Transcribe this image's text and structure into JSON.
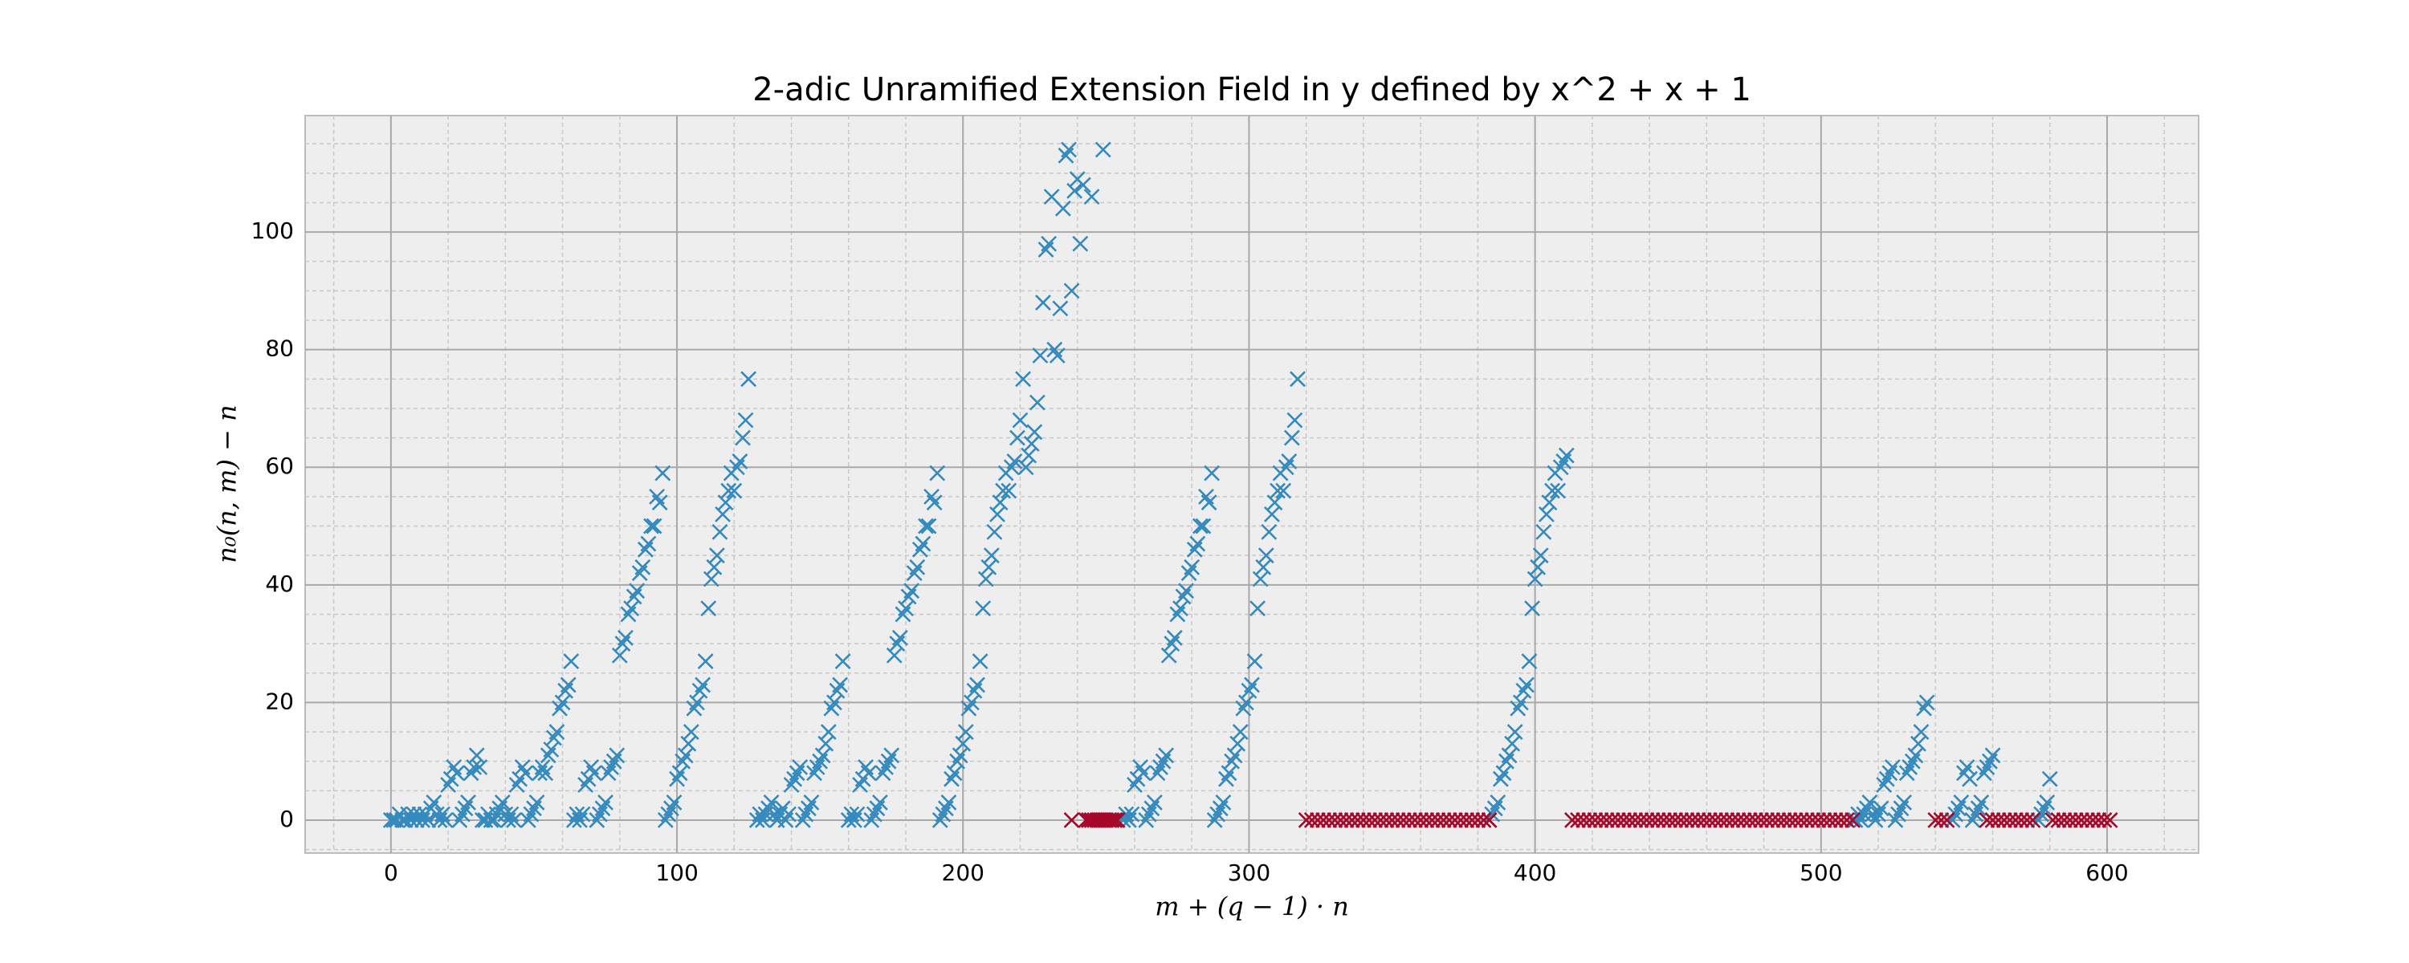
{
  "chart_data": {
    "type": "scatter",
    "title": "2-adic Unramified Extension Field in y defined by x^2 + x + 1",
    "xlabel": "m + (q − 1) · n",
    "ylabel": "n₀(n, m) − n",
    "xlim": [
      -30,
      632
    ],
    "ylim": [
      -5.6,
      119.8
    ],
    "xticks": [
      0,
      100,
      200,
      300,
      400,
      500,
      600
    ],
    "yticks": [
      0,
      20,
      40,
      60,
      80,
      100
    ],
    "xminorticks": [
      -20,
      20,
      40,
      60,
      80,
      120,
      140,
      160,
      180,
      220,
      240,
      260,
      280,
      320,
      340,
      360,
      380,
      420,
      440,
      460,
      480,
      520,
      540,
      560,
      580,
      620
    ],
    "yminorticks": [
      -5,
      5,
      10,
      15,
      25,
      30,
      35,
      45,
      50,
      55,
      65,
      70,
      75,
      85,
      90,
      95,
      105,
      110,
      115
    ],
    "grid": true,
    "background": "#eeeeee",
    "series": [
      {
        "color": "#348ABD",
        "x": [
          0,
          1,
          2,
          3,
          4,
          5,
          6,
          7,
          8,
          9,
          10,
          11,
          12,
          13,
          14,
          15,
          16,
          17,
          18,
          19,
          20,
          21,
          22,
          23,
          24,
          25,
          26,
          27,
          28,
          29,
          30,
          31,
          32,
          33,
          34,
          35,
          36,
          37,
          38,
          39,
          40,
          41,
          42,
          43,
          44,
          45,
          46,
          47,
          48,
          49,
          50,
          51,
          52,
          53,
          54,
          55,
          56,
          57,
          58,
          59,
          60,
          61,
          62,
          63,
          64,
          65,
          66,
          67,
          68,
          69,
          70,
          71,
          72,
          73,
          74,
          75,
          76,
          77,
          78,
          79,
          80,
          81,
          82,
          83,
          84,
          85,
          86,
          87,
          88,
          89,
          90,
          91,
          92,
          93,
          94,
          95,
          96,
          97,
          98,
          99,
          100,
          101,
          102,
          103,
          104,
          105,
          106,
          107,
          108,
          109,
          110,
          111,
          112,
          113,
          114,
          115,
          116,
          117,
          118,
          119,
          120,
          121,
          122,
          123,
          124,
          125,
          128,
          129,
          130,
          131,
          132,
          133,
          134,
          135,
          136,
          137,
          138,
          139,
          140,
          141,
          142,
          143,
          144,
          145,
          146,
          147,
          148,
          149,
          150,
          151,
          152,
          153,
          154,
          155,
          156,
          157,
          158,
          160,
          161,
          162,
          163,
          164,
          165,
          166,
          167,
          168,
          169,
          170,
          171,
          172,
          173,
          174,
          175,
          176,
          177,
          178,
          179,
          180,
          181,
          182,
          183,
          184,
          185,
          186,
          187,
          188,
          189,
          190,
          191,
          192,
          193,
          194,
          195,
          196,
          197,
          198,
          199,
          200,
          201,
          202,
          203,
          204,
          205,
          206,
          207,
          208,
          209,
          210,
          211,
          212,
          213,
          214,
          215,
          216,
          217,
          218,
          219,
          220,
          221,
          222,
          223,
          224,
          225,
          226,
          227,
          228,
          229,
          230,
          231,
          232,
          233,
          234,
          235,
          236,
          237,
          238,
          239,
          240,
          241,
          242,
          245,
          249,
          256,
          257,
          258,
          259,
          260,
          261,
          262,
          263,
          264,
          265,
          266,
          267,
          268,
          269,
          270,
          271,
          272,
          273,
          274,
          275,
          276,
          277,
          278,
          279,
          280,
          281,
          282,
          283,
          284,
          285,
          286,
          287,
          288,
          289,
          290,
          291,
          292,
          293,
          294,
          295,
          296,
          297,
          298,
          299,
          300,
          301,
          302,
          303,
          304,
          305,
          306,
          307,
          308,
          309,
          310,
          311,
          312,
          313,
          314,
          315,
          316,
          317,
          384,
          385,
          386,
          387,
          388,
          389,
          390,
          391,
          392,
          393,
          394,
          395,
          396,
          397,
          398,
          399,
          400,
          401,
          402,
          403,
          404,
          405,
          406,
          407,
          408,
          409,
          410,
          411,
          512,
          513,
          514,
          515,
          516,
          517,
          518,
          519,
          520,
          521,
          522,
          523,
          524,
          525,
          526,
          527,
          528,
          529,
          530,
          531,
          532,
          533,
          534,
          535,
          536,
          537,
          546,
          547,
          548,
          549,
          550,
          551,
          552,
          553,
          554,
          555,
          556,
          557,
          558,
          559,
          560,
          576,
          577,
          578,
          579,
          580
        ],
        "values": [
          0,
          0,
          0,
          1,
          0,
          0,
          1,
          0,
          1,
          0,
          1,
          0,
          1,
          0,
          2,
          3,
          1,
          0,
          1,
          0,
          6,
          7,
          9,
          8,
          0,
          1,
          2,
          3,
          8,
          9,
          11,
          9,
          0,
          0,
          1,
          0,
          0,
          1,
          2,
          3,
          1,
          0,
          1,
          0,
          6,
          7,
          9,
          8,
          0,
          1,
          2,
          3,
          8,
          9,
          8,
          11,
          12,
          14,
          15,
          19,
          20,
          22,
          23,
          27,
          0,
          1,
          0,
          1,
          6,
          7,
          9,
          8,
          0,
          1,
          2,
          3,
          8,
          9,
          10,
          11,
          28,
          30,
          31,
          35,
          36,
          38,
          39,
          42,
          43,
          46,
          47,
          50,
          50,
          55,
          54,
          59,
          0,
          1,
          2,
          3,
          7,
          8,
          10,
          11,
          13,
          15,
          19,
          20,
          22,
          23,
          27,
          36,
          41,
          43,
          45,
          49,
          52,
          54,
          56,
          59,
          56,
          60,
          61,
          65,
          68,
          75,
          0,
          1,
          0,
          1,
          2,
          3,
          1,
          0,
          1,
          2,
          0,
          1,
          6,
          7,
          8,
          9,
          0,
          1,
          2,
          3,
          8,
          9,
          10,
          11,
          13,
          15,
          19,
          20,
          22,
          23,
          27,
          0,
          1,
          0,
          1,
          6,
          7,
          9,
          8,
          0,
          1,
          2,
          3,
          8,
          9,
          10,
          11,
          28,
          30,
          31,
          35,
          36,
          38,
          39,
          42,
          43,
          46,
          47,
          50,
          50,
          55,
          54,
          59,
          0,
          1,
          2,
          3,
          7,
          8,
          10,
          11,
          13,
          15,
          19,
          20,
          22,
          23,
          27,
          36,
          41,
          43,
          45,
          49,
          52,
          54,
          56,
          59,
          56,
          60,
          61,
          65,
          68,
          75,
          60,
          62,
          64,
          66,
          71,
          79,
          88,
          97,
          98,
          106,
          80,
          79,
          87,
          104,
          113,
          114,
          90,
          107,
          109,
          98,
          108,
          106,
          114,
          0,
          1,
          0,
          1,
          6,
          7,
          9,
          8,
          0,
          1,
          2,
          3,
          8,
          9,
          10,
          11,
          28,
          30,
          31,
          35,
          36,
          38,
          39,
          42,
          43,
          46,
          47,
          50,
          50,
          55,
          54,
          59,
          0,
          1,
          2,
          3,
          7,
          8,
          10,
          11,
          13,
          15,
          19,
          20,
          22,
          23,
          27,
          36,
          41,
          43,
          45,
          49,
          52,
          54,
          56,
          59,
          56,
          60,
          61,
          65,
          68,
          75,
          0,
          1,
          2,
          3,
          7,
          8,
          10,
          11,
          13,
          15,
          19,
          20,
          22,
          23,
          27,
          36,
          41,
          43,
          45,
          49,
          52,
          54,
          56,
          59,
          56,
          60,
          61,
          62,
          0,
          1,
          0,
          1,
          2,
          3,
          1,
          0,
          1,
          2,
          6,
          7,
          8,
          9,
          0,
          1,
          2,
          3,
          8,
          9,
          10,
          11,
          13,
          15,
          19,
          20,
          0,
          1,
          2,
          3,
          8,
          9,
          7,
          0,
          1,
          2,
          3,
          8,
          9,
          10,
          11,
          0,
          1,
          2,
          3,
          7
        ]
      },
      {
        "color": "#A60628",
        "x": [
          238,
          243,
          244,
          245,
          246,
          247,
          248,
          249,
          250,
          251,
          252,
          253,
          254,
          320,
          322,
          324,
          326,
          328,
          330,
          332,
          334,
          336,
          338,
          340,
          342,
          344,
          346,
          348,
          350,
          352,
          354,
          356,
          358,
          360,
          362,
          364,
          366,
          368,
          370,
          372,
          374,
          376,
          378,
          380,
          382,
          384,
          413,
          415,
          417,
          419,
          421,
          423,
          425,
          427,
          429,
          431,
          433,
          435,
          437,
          439,
          441,
          443,
          445,
          447,
          449,
          451,
          453,
          455,
          457,
          459,
          461,
          463,
          465,
          467,
          469,
          471,
          473,
          475,
          477,
          479,
          481,
          483,
          485,
          487,
          489,
          491,
          493,
          495,
          497,
          499,
          501,
          503,
          505,
          507,
          509,
          511,
          540,
          542,
          544,
          558,
          560,
          562,
          564,
          566,
          568,
          570,
          572,
          574,
          581,
          583,
          585,
          587,
          589,
          591,
          593,
          595,
          597,
          599,
          601
        ],
        "values": [
          0,
          0,
          0,
          0,
          0,
          0,
          0,
          0,
          0,
          0,
          0,
          0,
          0,
          0,
          0,
          0,
          0,
          0,
          0,
          0,
          0,
          0,
          0,
          0,
          0,
          0,
          0,
          0,
          0,
          0,
          0,
          0,
          0,
          0,
          0,
          0,
          0,
          0,
          0,
          0,
          0,
          0,
          0,
          0,
          0,
          0,
          0,
          0,
          0,
          0,
          0,
          0,
          0,
          0,
          0,
          0,
          0,
          0,
          0,
          0,
          0,
          0,
          0,
          0,
          0,
          0,
          0,
          0,
          0,
          0,
          0,
          0,
          0,
          0,
          0,
          0,
          0,
          0,
          0,
          0,
          0,
          0,
          0,
          0,
          0,
          0,
          0,
          0,
          0,
          0,
          0,
          0,
          0,
          0,
          0,
          0,
          0,
          0,
          0,
          0,
          0,
          0,
          0,
          0,
          0,
          0,
          0,
          0,
          0,
          0,
          0,
          0,
          0,
          0,
          0,
          0,
          0,
          0,
          0
        ]
      }
    ]
  }
}
